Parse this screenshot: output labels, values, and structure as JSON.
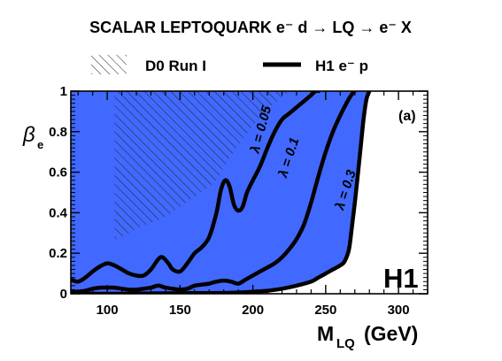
{
  "chart_data": {
    "type": "area",
    "title": "SCALAR LEPTOQUARK e⁻ d → LQ → e⁻ X",
    "xlabel": {
      "main": "M",
      "sub": "LQ",
      "unit": "(GeV)"
    },
    "ylabel": {
      "main": "β",
      "sub": "e"
    },
    "xlim": [
      75,
      320
    ],
    "ylim": [
      0,
      1
    ],
    "x_ticks": [
      100,
      150,
      200,
      250,
      300
    ],
    "x_tick_labels": [
      "100",
      "150",
      "200",
      "250",
      "300"
    ],
    "y_ticks": [
      0,
      0.2,
      0.4,
      0.6,
      0.8,
      1
    ],
    "y_tick_labels": [
      "0",
      "0.2",
      "0.4",
      "0.6",
      "0.8",
      "1"
    ],
    "grid": false,
    "panel_label": "(a)",
    "watermark": "H1",
    "legend": {
      "placement": "top",
      "items": [
        {
          "label": "D0 Run I",
          "style": "hatched"
        },
        {
          "label": "H1 e⁻ p",
          "style": "thick-line"
        }
      ]
    },
    "colors": {
      "lambda_0.05": "#00ffff",
      "lambda_0.1": "#1ecbff",
      "lambda_0.3": "#4169ff",
      "curve": "#000000",
      "hatch": "#222222"
    },
    "series": [
      {
        "name": "λ = 0.05",
        "x": [
          75,
          80,
          85,
          90,
          95,
          100,
          105,
          110,
          115,
          120,
          125,
          130,
          135,
          138,
          142,
          145,
          150,
          155,
          160,
          165,
          170,
          175,
          178,
          181,
          184,
          187,
          190,
          193,
          196,
          200,
          205,
          210,
          215,
          220,
          225,
          230,
          235,
          240,
          243,
          246
        ],
        "y": [
          0.07,
          0.06,
          0.08,
          0.11,
          0.135,
          0.15,
          0.14,
          0.12,
          0.1,
          0.09,
          0.09,
          0.12,
          0.17,
          0.18,
          0.15,
          0.12,
          0.11,
          0.15,
          0.2,
          0.23,
          0.28,
          0.4,
          0.51,
          0.56,
          0.53,
          0.44,
          0.41,
          0.43,
          0.5,
          0.56,
          0.63,
          0.72,
          0.8,
          0.86,
          0.89,
          0.92,
          0.95,
          0.98,
          1.0,
          1.0
        ]
      },
      {
        "name": "λ = 0.1",
        "x": [
          75,
          80,
          85,
          90,
          95,
          100,
          105,
          110,
          115,
          120,
          125,
          130,
          135,
          140,
          145,
          150,
          155,
          160,
          165,
          170,
          175,
          180,
          185,
          190,
          195,
          200,
          205,
          210,
          215,
          220,
          225,
          230,
          235,
          240,
          245,
          250,
          255,
          260,
          265,
          268,
          270
        ],
        "y": [
          0.01,
          0.01,
          0.015,
          0.025,
          0.03,
          0.03,
          0.03,
          0.025,
          0.02,
          0.02,
          0.025,
          0.03,
          0.04,
          0.03,
          0.025,
          0.02,
          0.025,
          0.04,
          0.045,
          0.05,
          0.06,
          0.065,
          0.06,
          0.05,
          0.07,
          0.09,
          0.11,
          0.13,
          0.15,
          0.18,
          0.22,
          0.27,
          0.34,
          0.45,
          0.58,
          0.7,
          0.8,
          0.88,
          0.95,
          0.985,
          1.0
        ]
      },
      {
        "name": "λ = 0.3",
        "x": [
          75,
          100,
          120,
          140,
          160,
          180,
          190,
          200,
          210,
          220,
          230,
          240,
          245,
          250,
          255,
          260,
          263,
          266,
          268,
          270,
          272,
          274,
          276,
          278,
          280
        ],
        "y": [
          0,
          0,
          0.001,
          0.002,
          0.003,
          0.004,
          0.006,
          0.01,
          0.015,
          0.025,
          0.04,
          0.06,
          0.08,
          0.1,
          0.12,
          0.14,
          0.16,
          0.22,
          0.33,
          0.45,
          0.58,
          0.72,
          0.86,
          0.96,
          1.0
        ]
      },
      {
        "name": "D0 Run I",
        "x": [
          105,
          110,
          120,
          130,
          140,
          150,
          160,
          170,
          175,
          180,
          185,
          190,
          195,
          200,
          205,
          210,
          215,
          220,
          225
        ],
        "y": [
          0.27,
          0.28,
          0.32,
          0.35,
          0.38,
          0.43,
          0.48,
          0.53,
          0.56,
          0.62,
          0.68,
          0.73,
          0.78,
          0.83,
          0.87,
          0.91,
          0.94,
          0.97,
          1.0
        ]
      }
    ],
    "curve_labels": [
      "λ = 0.05",
      "λ = 0.1",
      "λ = 0.3"
    ]
  }
}
